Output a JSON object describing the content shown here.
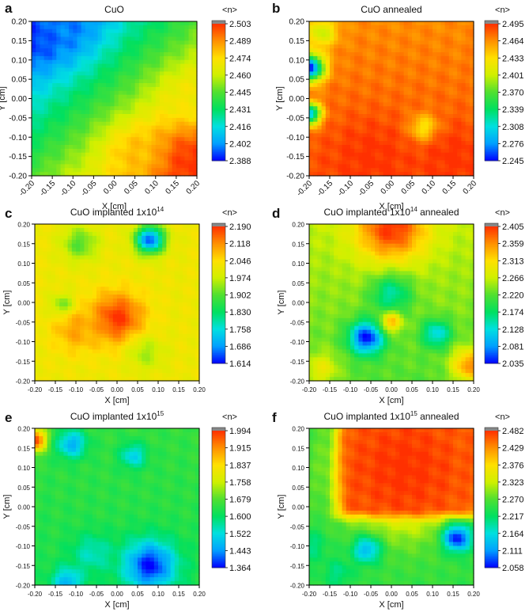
{
  "colormap": [
    "#0000ff",
    "#00a0ff",
    "#00e0e0",
    "#00e060",
    "#50e030",
    "#d0f000",
    "#ffe000",
    "#ff9000",
    "#ff3000"
  ],
  "cap_color": "#888888",
  "chart_data": [
    {
      "type": "heatmap",
      "panel_letter": "a",
      "title": "CuO",
      "title_sup": "",
      "title_suffix": "",
      "xlabel": "X [cm]",
      "ylabel": "Y [cm]",
      "colorbar_label": "<n>",
      "xlim": [
        -0.2,
        0.2
      ],
      "ylim": [
        -0.2,
        0.2
      ],
      "x_ticks": [
        "-0.20",
        "-0.15",
        "-0.10",
        "-0.05",
        "0.00",
        "0.05",
        "0.10",
        "0.15",
        "0.20"
      ],
      "y_ticks": [
        "0.20",
        "0.15",
        "0.10",
        "0.05",
        "0.00",
        "-0.05",
        "-0.10",
        "-0.15",
        "-0.20"
      ],
      "x_tick_rotation": 45,
      "colorbar_ticks": [
        "2.503",
        "2.489",
        "2.474",
        "2.460",
        "2.445",
        "2.431",
        "2.416",
        "2.402",
        "2.388"
      ],
      "value_range": [
        2.388,
        2.503
      ],
      "hotspots": [
        {
          "x": -0.19,
          "y": 0.19,
          "v": 2.388,
          "s": 0.07
        },
        {
          "x": -0.12,
          "y": 0.2,
          "v": 2.4,
          "s": 0.06
        },
        {
          "x": 0.18,
          "y": -0.16,
          "v": 2.503,
          "s": 0.07
        },
        {
          "x": 0.05,
          "y": -0.14,
          "v": 2.48,
          "s": 0.05
        },
        {
          "x": 0.18,
          "y": 0.0,
          "v": 2.47,
          "s": 0.05
        }
      ],
      "trend": {
        "base": 2.445,
        "gx": 0.14,
        "gy": -0.14
      }
    },
    {
      "type": "heatmap",
      "panel_letter": "b",
      "title": "CuO annealed",
      "title_sup": "",
      "title_suffix": "",
      "xlabel": "X [cm]",
      "ylabel": "Y [cm]",
      "colorbar_label": "<n>",
      "xlim": [
        -0.2,
        0.2
      ],
      "ylim": [
        -0.2,
        0.2
      ],
      "x_ticks": [
        "-0.20",
        "-0.15",
        "-0.10",
        "-0.05",
        "0.00",
        "0.05",
        "0.10",
        "0.15",
        "0.20"
      ],
      "y_ticks": [
        "0.20",
        "0.15",
        "0.10",
        "0.05",
        "0.00",
        "-0.05",
        "-0.10",
        "-0.15",
        "-0.20"
      ],
      "x_tick_rotation": 45,
      "colorbar_ticks": [
        "2.495",
        "2.464",
        "2.433",
        "2.401",
        "2.370",
        "2.339",
        "2.308",
        "2.276",
        "2.245"
      ],
      "value_range": [
        2.245,
        2.495
      ],
      "hotspots": [
        {
          "x": -0.2,
          "y": 0.08,
          "v": 2.245,
          "s": 0.025
        },
        {
          "x": -0.2,
          "y": -0.04,
          "v": 2.28,
          "s": 0.02
        },
        {
          "x": -0.17,
          "y": 0.17,
          "v": 2.4,
          "s": 0.025
        },
        {
          "x": 0.08,
          "y": -0.08,
          "v": 2.4,
          "s": 0.025
        },
        {
          "x": -0.05,
          "y": -0.15,
          "v": 2.495,
          "s": 0.07
        },
        {
          "x": 0.15,
          "y": -0.15,
          "v": 2.495,
          "s": 0.06
        }
      ],
      "trend": {
        "base": 2.475,
        "gx": 0.0,
        "gy": -0.05
      }
    },
    {
      "type": "heatmap",
      "panel_letter": "c",
      "title": "CuO implanted 1x10",
      "title_sup": "14",
      "title_suffix": "",
      "xlabel": "X [cm]",
      "ylabel": "Y [cm]",
      "colorbar_label": "<n>",
      "xlim": [
        -0.2,
        0.2
      ],
      "ylim": [
        -0.2,
        0.2
      ],
      "x_ticks": [
        "-0.20",
        "-0.15",
        "-0.10",
        "-0.05",
        "0.00",
        "0.05",
        "0.10",
        "0.15",
        "0.20"
      ],
      "y_ticks": [
        "0.20",
        "0.15",
        "0.10",
        "0.05",
        "0.00",
        "-0.05",
        "-0.10",
        "-0.15",
        "-0.20"
      ],
      "x_tick_rotation": 0,
      "colorbar_ticks": [
        "2.190",
        "2.118",
        "2.046",
        "1.974",
        "1.902",
        "1.830",
        "1.758",
        "1.686",
        "1.614"
      ],
      "value_range": [
        1.614,
        2.19
      ],
      "hotspots": [
        {
          "x": 0.08,
          "y": 0.16,
          "v": 1.65,
          "s": 0.025
        },
        {
          "x": -0.09,
          "y": 0.15,
          "v": 1.9,
          "s": 0.03
        },
        {
          "x": -0.13,
          "y": -0.01,
          "v": 1.88,
          "s": 0.02
        },
        {
          "x": 0.0,
          "y": -0.04,
          "v": 2.19,
          "s": 0.045
        },
        {
          "x": -0.1,
          "y": -0.07,
          "v": 2.1,
          "s": 0.04
        },
        {
          "x": 0.07,
          "y": -0.13,
          "v": 1.95,
          "s": 0.03
        }
      ],
      "trend": {
        "base": 2.02,
        "gx": 0.0,
        "gy": 0.0
      }
    },
    {
      "type": "heatmap",
      "panel_letter": "d",
      "title": "CuO implanted 1x10",
      "title_sup": "14",
      "title_suffix": " annealed",
      "xlabel": "X [cm]",
      "ylabel": "Y [cm]",
      "colorbar_label": "<n>",
      "xlim": [
        -0.2,
        0.2
      ],
      "ylim": [
        -0.2,
        0.2
      ],
      "x_ticks": [
        "-0.20",
        "-0.15",
        "-0.10",
        "-0.05",
        "0.00",
        "0.05",
        "0.10",
        "0.15",
        "0.20"
      ],
      "y_ticks": [
        "0.20",
        "0.15",
        "0.10",
        "0.05",
        "0.00",
        "-0.05",
        "-0.10",
        "-0.15",
        "-0.20"
      ],
      "x_tick_rotation": 0,
      "colorbar_ticks": [
        "2.405",
        "2.359",
        "2.313",
        "2.266",
        "2.220",
        "2.174",
        "2.128",
        "2.081",
        "2.035"
      ],
      "value_range": [
        2.035,
        2.405
      ],
      "hotspots": [
        {
          "x": 0.0,
          "y": 0.19,
          "v": 2.405,
          "s": 0.06
        },
        {
          "x": -0.06,
          "y": -0.09,
          "v": 2.035,
          "s": 0.03
        },
        {
          "x": 0.0,
          "y": 0.02,
          "v": 2.15,
          "s": 0.035
        },
        {
          "x": 0.11,
          "y": -0.08,
          "v": 2.12,
          "s": 0.025
        },
        {
          "x": 0.0,
          "y": -0.05,
          "v": 2.33,
          "s": 0.018
        },
        {
          "x": 0.19,
          "y": -0.16,
          "v": 2.36,
          "s": 0.03
        },
        {
          "x": -0.17,
          "y": -0.17,
          "v": 2.29,
          "s": 0.03
        }
      ],
      "trend": {
        "base": 2.24,
        "gx": 0.0,
        "gy": 0.1
      }
    },
    {
      "type": "heatmap",
      "panel_letter": "e",
      "title": "CuO implanted 1x10",
      "title_sup": "15",
      "title_suffix": "",
      "xlabel": "X [cm]",
      "ylabel": "Y [cm]",
      "colorbar_label": "<n>",
      "xlim": [
        -0.2,
        0.2
      ],
      "ylim": [
        -0.2,
        0.2
      ],
      "x_ticks": [
        "-0.20",
        "-0.15",
        "-0.10",
        "-0.05",
        "0.00",
        "0.05",
        "0.10",
        "0.15",
        "0.20"
      ],
      "y_ticks": [
        "0.20",
        "0.15",
        "0.10",
        "0.05",
        "0.00",
        "-0.05",
        "-0.10",
        "-0.15",
        "-0.20"
      ],
      "x_tick_rotation": 0,
      "colorbar_ticks": [
        "1.994",
        "1.915",
        "1.837",
        "1.758",
        "1.679",
        "1.600",
        "1.522",
        "1.443",
        "1.364"
      ],
      "value_range": [
        1.364,
        1.994
      ],
      "hotspots": [
        {
          "x": -0.2,
          "y": 0.17,
          "v": 1.994,
          "s": 0.02
        },
        {
          "x": -0.11,
          "y": 0.16,
          "v": 1.46,
          "s": 0.025
        },
        {
          "x": 0.04,
          "y": 0.13,
          "v": 1.5,
          "s": 0.022
        },
        {
          "x": 0.08,
          "y": -0.15,
          "v": 1.37,
          "s": 0.045
        },
        {
          "x": -0.12,
          "y": -0.19,
          "v": 1.46,
          "s": 0.025
        },
        {
          "x": -0.06,
          "y": -0.12,
          "v": 1.54,
          "s": 0.035
        }
      ],
      "trend": {
        "base": 1.64,
        "gx": 0.0,
        "gy": 0.05
      }
    },
    {
      "type": "heatmap",
      "panel_letter": "f",
      "title": "CuO implanted 1x10",
      "title_sup": "15",
      "title_suffix": " annealed",
      "xlabel": "X [cm]",
      "ylabel": "Y [cm]",
      "colorbar_label": "<n>",
      "xlim": [
        -0.2,
        0.2
      ],
      "ylim": [
        -0.2,
        0.2
      ],
      "x_ticks": [
        "-0.20",
        "-0.15",
        "-0.10",
        "-0.05",
        "0.00",
        "0.05",
        "0.10",
        "0.15",
        "0.20"
      ],
      "y_ticks": [
        "0.20",
        "0.15",
        "0.10",
        "0.05",
        "0.00",
        "-0.05",
        "-0.10",
        "-0.15",
        "-0.20"
      ],
      "x_tick_rotation": 0,
      "colorbar_ticks": [
        "2.482",
        "2.429",
        "2.376",
        "2.323",
        "2.270",
        "2.217",
        "2.164",
        "2.111",
        "2.058"
      ],
      "value_range": [
        2.058,
        2.482
      ],
      "hotspots": [
        {
          "x": 0.03,
          "y": 0.1,
          "v": 2.482,
          "s": 0.1
        },
        {
          "x": -0.2,
          "y": -0.1,
          "v": 2.2,
          "s": 0.03
        },
        {
          "x": -0.06,
          "y": -0.11,
          "v": 2.13,
          "s": 0.025
        },
        {
          "x": 0.16,
          "y": -0.08,
          "v": 2.06,
          "s": 0.025
        },
        {
          "x": -0.13,
          "y": -0.17,
          "v": 2.2,
          "s": 0.025
        }
      ],
      "trend": {
        "base": 2.25,
        "gx": 0.0,
        "gy": 0.0
      },
      "plateau": {
        "x0": -0.15,
        "y0": -0.04,
        "v": 2.45
      }
    }
  ]
}
